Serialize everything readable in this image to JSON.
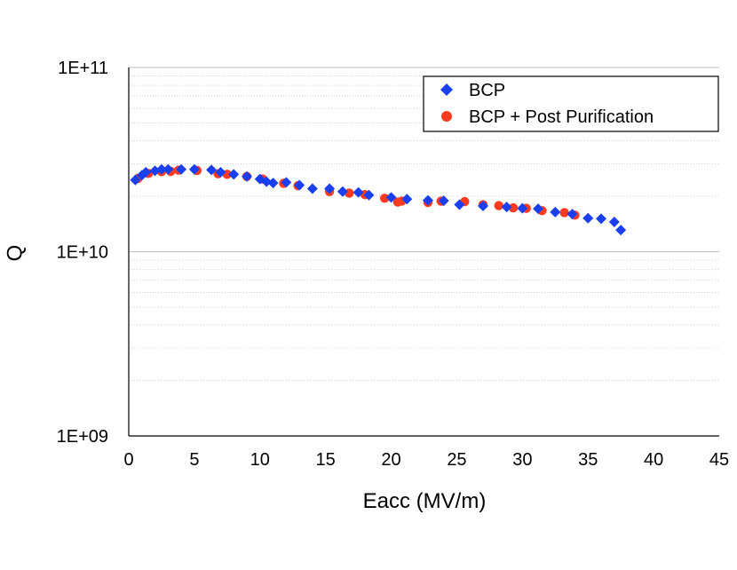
{
  "chart_data": {
    "type": "scatter",
    "title": "",
    "xlabel": "Eacc (MV/m)",
    "ylabel": "Q",
    "xlim": [
      0,
      45
    ],
    "ylim": [
      1000000000,
      100000000000
    ],
    "yscale": "log",
    "x_ticks": [
      0,
      5,
      10,
      15,
      20,
      25,
      30,
      35,
      40,
      45
    ],
    "x_tick_labels": [
      "0",
      "5",
      "10",
      "15",
      "20",
      "25",
      "30",
      "35",
      "40",
      "45"
    ],
    "y_ticks": [
      1000000000,
      10000000000,
      100000000000
    ],
    "y_tick_labels": [
      "1E+09",
      "1E+10",
      "1E+11"
    ],
    "grid": "horizontal minor gridlines (dotted)",
    "legend_position": "top-right",
    "colors": {
      "BCP": "#1a3ff0",
      "BCP + Post Purification": "#ff3b1f"
    },
    "series": [
      {
        "name": "BCP",
        "marker": "diamond",
        "points": [
          [
            0.5,
            24500000000
          ],
          [
            1.0,
            26000000000
          ],
          [
            1.3,
            27000000000
          ],
          [
            2.0,
            27500000000
          ],
          [
            2.5,
            28000000000
          ],
          [
            3.0,
            28000000000
          ],
          [
            4.0,
            28000000000
          ],
          [
            5.0,
            28000000000
          ],
          [
            6.3,
            27800000000
          ],
          [
            7.0,
            27000000000
          ],
          [
            8.0,
            26300000000
          ],
          [
            9.0,
            25600000000
          ],
          [
            10.0,
            24800000000
          ],
          [
            10.5,
            24000000000
          ],
          [
            11.0,
            23600000000
          ],
          [
            12.0,
            23800000000
          ],
          [
            13.0,
            23000000000
          ],
          [
            14.0,
            22000000000
          ],
          [
            15.3,
            22000000000
          ],
          [
            16.3,
            21200000000
          ],
          [
            17.5,
            21000000000
          ],
          [
            18.3,
            20300000000
          ],
          [
            20.0,
            19700000000
          ],
          [
            21.2,
            19300000000
          ],
          [
            22.8,
            19000000000
          ],
          [
            24.0,
            18900000000
          ],
          [
            25.2,
            18000000000
          ],
          [
            27.0,
            17700000000
          ],
          [
            28.8,
            17500000000
          ],
          [
            30.0,
            17200000000
          ],
          [
            31.2,
            17100000000
          ],
          [
            32.5,
            16400000000
          ],
          [
            33.8,
            16000000000
          ],
          [
            35.0,
            15200000000
          ],
          [
            36.0,
            15100000000
          ],
          [
            37.0,
            14500000000
          ],
          [
            37.5,
            13100000000
          ]
        ]
      },
      {
        "name": "BCP + Post Purification",
        "marker": "circle",
        "points": [
          [
            0.7,
            25000000000
          ],
          [
            1.5,
            26600000000
          ],
          [
            2.5,
            27200000000
          ],
          [
            3.2,
            27300000000
          ],
          [
            3.8,
            27700000000
          ],
          [
            5.2,
            27600000000
          ],
          [
            6.8,
            26500000000
          ],
          [
            7.5,
            26300000000
          ],
          [
            9.0,
            25600000000
          ],
          [
            10.2,
            24800000000
          ],
          [
            11.8,
            23500000000
          ],
          [
            12.9,
            22800000000
          ],
          [
            15.3,
            21200000000
          ],
          [
            16.8,
            20800000000
          ],
          [
            18.0,
            20400000000
          ],
          [
            19.5,
            19500000000
          ],
          [
            20.5,
            18600000000
          ],
          [
            20.8,
            18800000000
          ],
          [
            22.8,
            18500000000
          ],
          [
            23.8,
            18800000000
          ],
          [
            25.6,
            18700000000
          ],
          [
            27.0,
            18000000000
          ],
          [
            28.2,
            17800000000
          ],
          [
            29.3,
            17300000000
          ],
          [
            30.3,
            17200000000
          ],
          [
            31.5,
            16700000000
          ],
          [
            33.2,
            16300000000
          ],
          [
            34.0,
            15800000000
          ]
        ]
      }
    ]
  }
}
